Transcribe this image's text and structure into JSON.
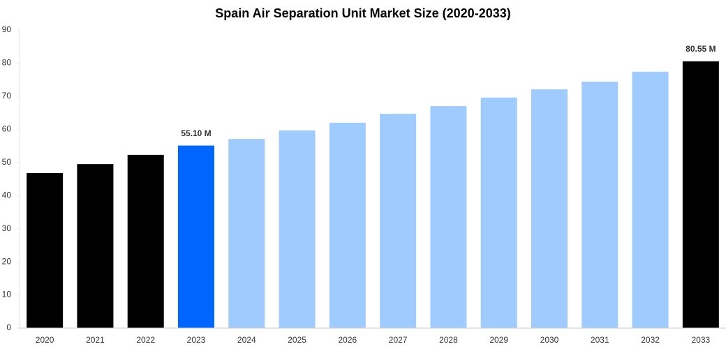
{
  "chart_data": {
    "type": "bar",
    "title": "Spain Air Separation Unit Market Size (2020-2033)",
    "categories": [
      "2020",
      "2021",
      "2022",
      "2023",
      "2024",
      "2025",
      "2026",
      "2027",
      "2028",
      "2029",
      "2030",
      "2031",
      "2032",
      "2033"
    ],
    "values": [
      46.8,
      49.5,
      52.3,
      55.1,
      57.1,
      59.7,
      62.0,
      64.7,
      67.0,
      69.6,
      72.1,
      74.4,
      77.4,
      80.55
    ],
    "value_labels": [
      null,
      null,
      null,
      "55.10 M",
      null,
      null,
      null,
      null,
      null,
      null,
      null,
      null,
      null,
      "80.55 M"
    ],
    "colors": [
      "#000000",
      "#000000",
      "#000000",
      "#0066ff",
      "#a0cbff",
      "#a0cbff",
      "#a0cbff",
      "#a0cbff",
      "#a0cbff",
      "#a0cbff",
      "#a0cbff",
      "#a0cbff",
      "#a0cbff",
      "#000000"
    ],
    "ylim": [
      0,
      90
    ],
    "yticks": [
      0,
      10,
      20,
      30,
      40,
      50,
      60,
      70,
      80,
      90
    ],
    "grid": false
  }
}
